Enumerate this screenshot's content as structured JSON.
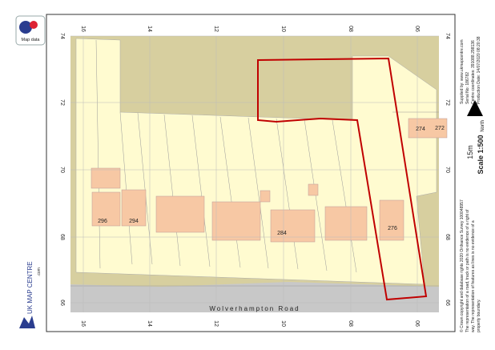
{
  "logo": {
    "text": "Map data"
  },
  "brand": {
    "name": "UK MAP CENTRE",
    "suffix": ".com"
  },
  "grid": {
    "top": [
      "16",
      "14",
      "12",
      "10",
      "08",
      "06"
    ],
    "bottom": [
      "16",
      "14",
      "12",
      "10",
      "08",
      "06"
    ],
    "left": [
      "74",
      "72",
      "70",
      "68",
      "66"
    ],
    "right": [
      "74",
      "72",
      "70",
      "68",
      "66"
    ]
  },
  "map": {
    "road": "Wolverhampton Road",
    "house_numbers": [
      "296",
      "294",
      "284",
      "276",
      "274",
      "272"
    ]
  },
  "info": {
    "supplier": "Supplied by: www.ukmapcentre.com",
    "serial": "Serial No: 186782",
    "centre": "Centre coordinates: 391088.298136",
    "date": "Production Date: 14/07/2020 08:20:38",
    "north": "North",
    "scale_bar": "15m",
    "scale": "Scale 1:500",
    "copyright": "© Crown copyright and database rights 2020 Ordnance Survey 100048957",
    "note1": "The representation of a road, track or path is no evidence of a right of",
    "note2": "way. The representation of features as lines is no evidence of a",
    "note3": "property boundary."
  }
}
